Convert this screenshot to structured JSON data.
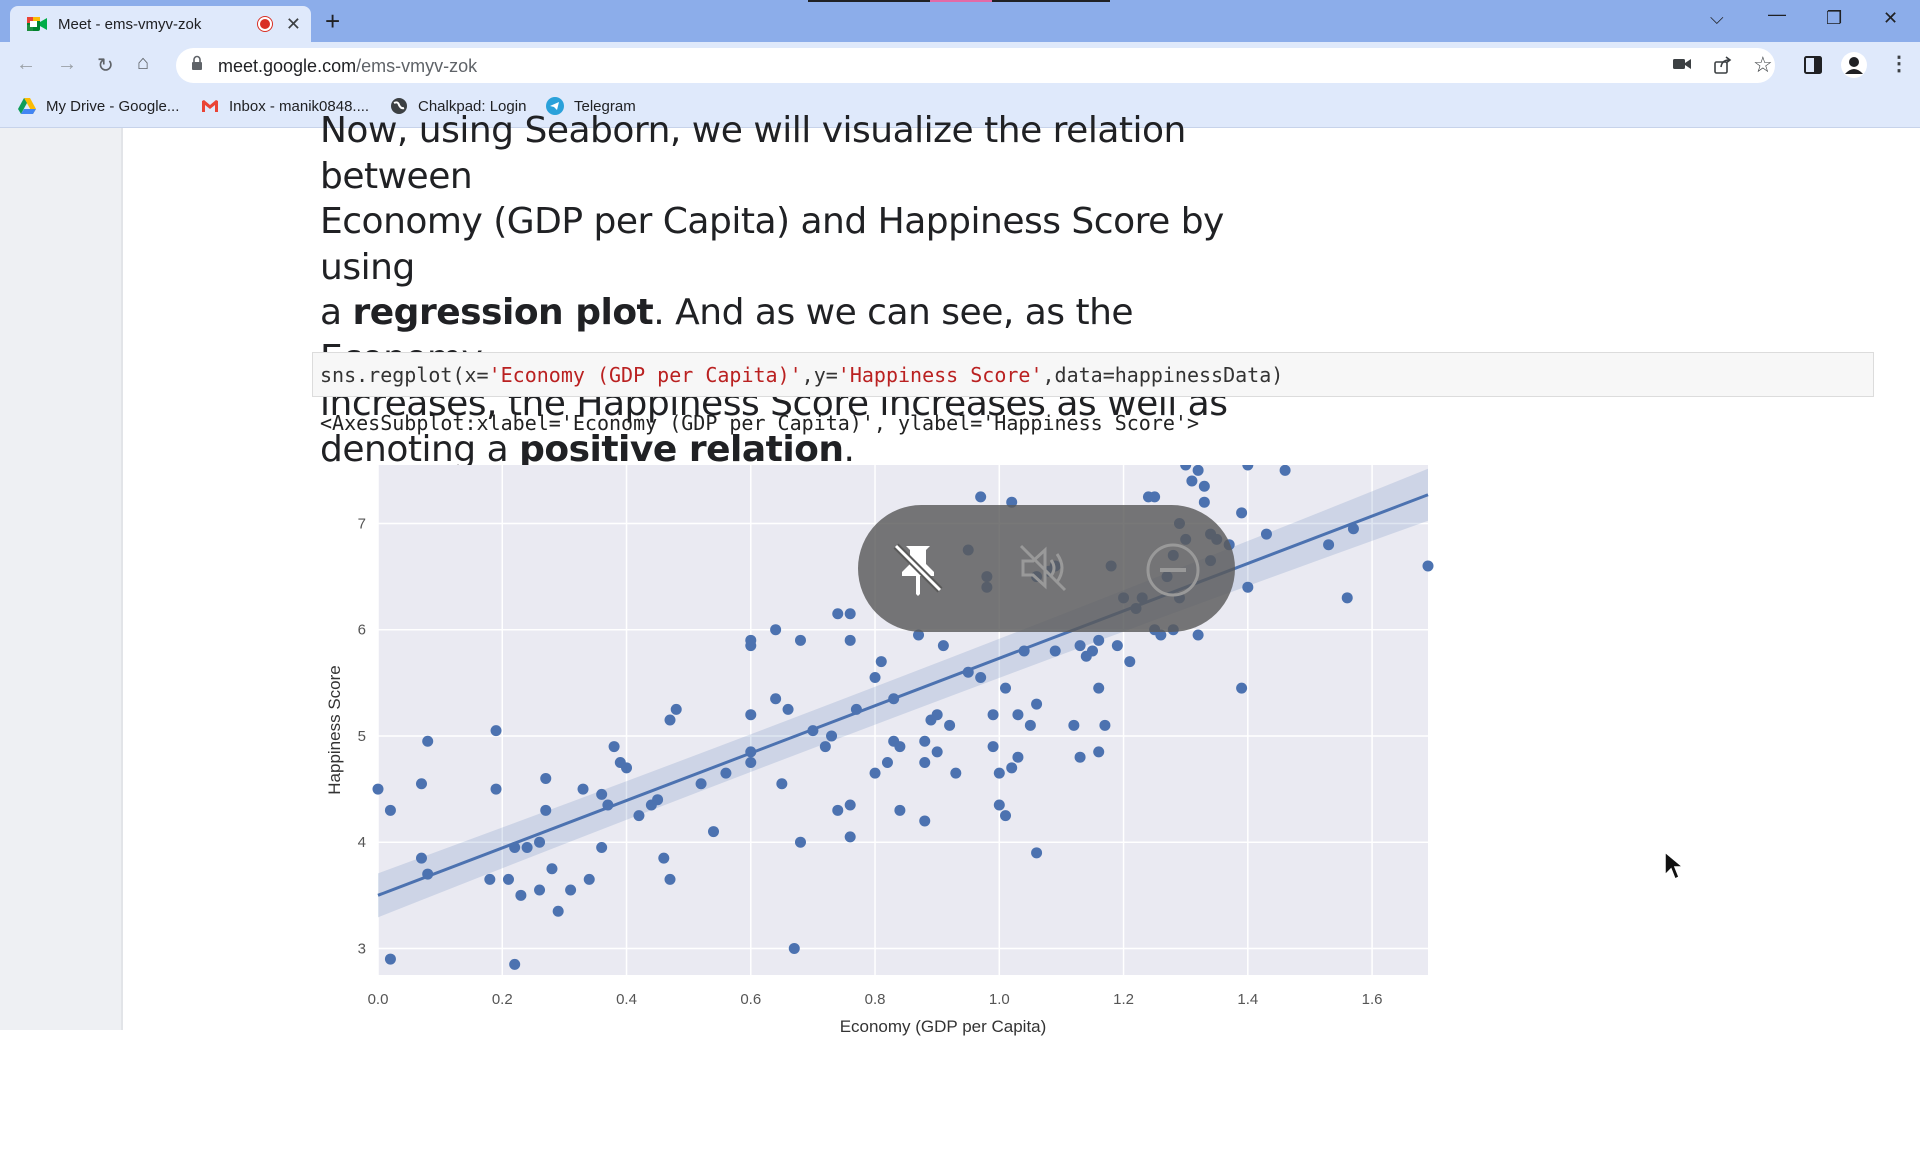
{
  "browser": {
    "tab_title": "Meet - ems-vmyv-zok",
    "new_tab_label": "+",
    "url_domain": "meet.google.com",
    "url_path": "/ems-vmyv-zok",
    "bookmarks": [
      {
        "label": "My Drive - Google...",
        "icon": "google-drive-icon"
      },
      {
        "label": "Inbox - manik0848....",
        "icon": "gmail-icon"
      },
      {
        "label": "Chalkpad: Login",
        "icon": "globe-icon"
      },
      {
        "label": "Telegram",
        "icon": "telegram-icon"
      }
    ]
  },
  "notebook": {
    "para": {
      "l1": "Now, using Seaborn, we will visualize the relation between",
      "l2": "Economy (GDP per Capita) and Happiness Score by using",
      "l3a": "a ",
      "l3b": "regression plot",
      "l3c": ". And as we can see, as the Economy",
      "l4": "increases, the Happiness Score increases as well as",
      "l5a": "denoting a ",
      "l5b": "positive relation",
      "l5c": "."
    },
    "code": {
      "p1": "sns.regplot(x=",
      "s1": "'Economy (GDP per Capita)'",
      "p2": ",y=",
      "s2": "'Happiness Score'",
      "p3": ",data=happinessData)"
    },
    "output": "<AxesSubplot:xlabel='Economy (GDP per Capita)', ylabel='Happiness Score'>"
  },
  "chart_data": {
    "type": "scatter",
    "xlabel": "Economy (GDP per Capita)",
    "ylabel": "Happiness Score",
    "xlim": [
      0.0,
      1.69
    ],
    "ylim": [
      2.75,
      7.55
    ],
    "xticks": [
      "0.0",
      "0.2",
      "0.4",
      "0.6",
      "0.8",
      "1.0",
      "1.2",
      "1.4",
      "1.6"
    ],
    "yticks": [
      "3",
      "4",
      "5",
      "6",
      "7"
    ],
    "regression_line": {
      "x": [
        0.0,
        1.69
      ],
      "y": [
        3.5,
        7.27
      ]
    },
    "colors": {
      "points": "#4c72b0",
      "background": "#eaeaf2"
    },
    "points": [
      [
        0.02,
        4.3
      ],
      [
        0.02,
        2.9
      ],
      [
        0.07,
        3.85
      ],
      [
        0.08,
        3.7
      ],
      [
        0.07,
        4.55
      ],
      [
        0.08,
        4.95
      ],
      [
        0.19,
        5.05
      ],
      [
        0.19,
        4.5
      ],
      [
        0.18,
        3.65
      ],
      [
        0.22,
        3.95
      ],
      [
        0.21,
        3.65
      ],
      [
        0.22,
        2.85
      ],
      [
        0.23,
        3.5
      ],
      [
        0.24,
        3.95
      ],
      [
        0.26,
        4.0
      ],
      [
        0.26,
        3.55
      ],
      [
        0.27,
        4.6
      ],
      [
        0.27,
        4.3
      ],
      [
        0.28,
        3.75
      ],
      [
        0.29,
        3.35
      ],
      [
        0.31,
        3.55
      ],
      [
        0.33,
        4.5
      ],
      [
        0.34,
        3.65
      ],
      [
        0.36,
        4.45
      ],
      [
        0.36,
        3.95
      ],
      [
        0.37,
        4.35
      ],
      [
        0.38,
        4.9
      ],
      [
        0.39,
        4.75
      ],
      [
        0.4,
        4.7
      ],
      [
        0.42,
        4.25
      ],
      [
        0.44,
        4.35
      ],
      [
        0.45,
        4.4
      ],
      [
        0.46,
        3.85
      ],
      [
        0.47,
        3.65
      ],
      [
        0.47,
        5.15
      ],
      [
        0.48,
        5.25
      ],
      [
        0.52,
        4.55
      ],
      [
        0.54,
        4.1
      ],
      [
        0.56,
        4.65
      ],
      [
        0.6,
        5.85
      ],
      [
        0.6,
        5.9
      ],
      [
        0.6,
        5.2
      ],
      [
        0.6,
        4.85
      ],
      [
        0.6,
        4.75
      ],
      [
        0.64,
        6.0
      ],
      [
        0.64,
        5.35
      ],
      [
        0.65,
        4.55
      ],
      [
        0.66,
        5.25
      ],
      [
        0.67,
        3.0
      ],
      [
        0.68,
        5.9
      ],
      [
        0.68,
        4.0
      ],
      [
        0.7,
        5.05
      ],
      [
        0.72,
        4.9
      ],
      [
        0.73,
        5.0
      ],
      [
        0.74,
        6.15
      ],
      [
        0.74,
        4.3
      ],
      [
        0.76,
        6.15
      ],
      [
        0.76,
        5.9
      ],
      [
        0.76,
        4.05
      ],
      [
        0.76,
        4.35
      ],
      [
        0.77,
        5.25
      ],
      [
        0.8,
        4.65
      ],
      [
        0.8,
        5.55
      ],
      [
        0.81,
        5.7
      ],
      [
        0.82,
        4.75
      ],
      [
        0.83,
        5.35
      ],
      [
        0.83,
        4.95
      ],
      [
        0.84,
        4.3
      ],
      [
        0.84,
        4.9
      ],
      [
        0.87,
        5.95
      ],
      [
        0.88,
        4.2
      ],
      [
        0.88,
        4.95
      ],
      [
        0.88,
        4.75
      ],
      [
        0.89,
        5.15
      ],
      [
        0.9,
        5.2
      ],
      [
        0.9,
        4.85
      ],
      [
        0.91,
        5.85
      ],
      [
        0.92,
        5.1
      ],
      [
        0.93,
        4.65
      ],
      [
        0.95,
        5.6
      ],
      [
        0.95,
        6.75
      ],
      [
        0.97,
        5.55
      ],
      [
        0.97,
        7.25
      ],
      [
        0.98,
        6.5
      ],
      [
        0.98,
        6.4
      ],
      [
        0.99,
        5.2
      ],
      [
        0.99,
        4.9
      ],
      [
        1.0,
        4.35
      ],
      [
        1.0,
        4.65
      ],
      [
        1.01,
        4.25
      ],
      [
        1.01,
        5.45
      ],
      [
        1.02,
        4.7
      ],
      [
        1.02,
        7.2
      ],
      [
        1.03,
        5.2
      ],
      [
        1.03,
        4.8
      ],
      [
        1.04,
        5.8
      ],
      [
        1.05,
        5.1
      ],
      [
        1.06,
        6.5
      ],
      [
        1.06,
        3.9
      ],
      [
        1.06,
        5.3
      ],
      [
        1.08,
        6.55
      ],
      [
        1.09,
        6.6
      ],
      [
        1.09,
        5.8
      ],
      [
        1.12,
        5.1
      ],
      [
        1.13,
        4.8
      ],
      [
        1.13,
        5.85
      ],
      [
        1.14,
        5.75
      ],
      [
        1.15,
        5.8
      ],
      [
        1.16,
        5.9
      ],
      [
        1.16,
        5.45
      ],
      [
        1.16,
        4.85
      ],
      [
        1.17,
        5.1
      ],
      [
        1.18,
        6.6
      ],
      [
        1.19,
        5.85
      ],
      [
        1.2,
        6.3
      ],
      [
        1.21,
        5.7
      ],
      [
        1.22,
        6.2
      ],
      [
        1.23,
        6.3
      ],
      [
        1.24,
        7.25
      ],
      [
        1.25,
        7.25
      ],
      [
        1.25,
        6.0
      ],
      [
        1.26,
        5.95
      ],
      [
        1.27,
        6.5
      ],
      [
        1.28,
        6.7
      ],
      [
        1.28,
        6.0
      ],
      [
        1.29,
        7.0
      ],
      [
        1.29,
        6.3
      ],
      [
        1.3,
        6.85
      ],
      [
        1.3,
        7.55
      ],
      [
        1.31,
        7.4
      ],
      [
        1.32,
        7.5
      ],
      [
        1.32,
        5.95
      ],
      [
        1.33,
        7.35
      ],
      [
        1.33,
        7.2
      ],
      [
        1.34,
        6.9
      ],
      [
        1.34,
        6.65
      ],
      [
        1.35,
        6.85
      ],
      [
        1.37,
        6.8
      ],
      [
        1.39,
        5.45
      ],
      [
        1.39,
        7.1
      ],
      [
        1.4,
        6.4
      ],
      [
        1.4,
        7.55
      ],
      [
        1.43,
        6.9
      ],
      [
        1.46,
        7.5
      ],
      [
        1.53,
        6.8
      ],
      [
        1.56,
        6.3
      ],
      [
        1.57,
        6.95
      ],
      [
        1.69,
        6.6
      ],
      [
        0.0,
        4.5
      ]
    ]
  },
  "overlay": {
    "icons": [
      "pin-off-icon",
      "volume-off-icon",
      "remove-icon"
    ]
  }
}
